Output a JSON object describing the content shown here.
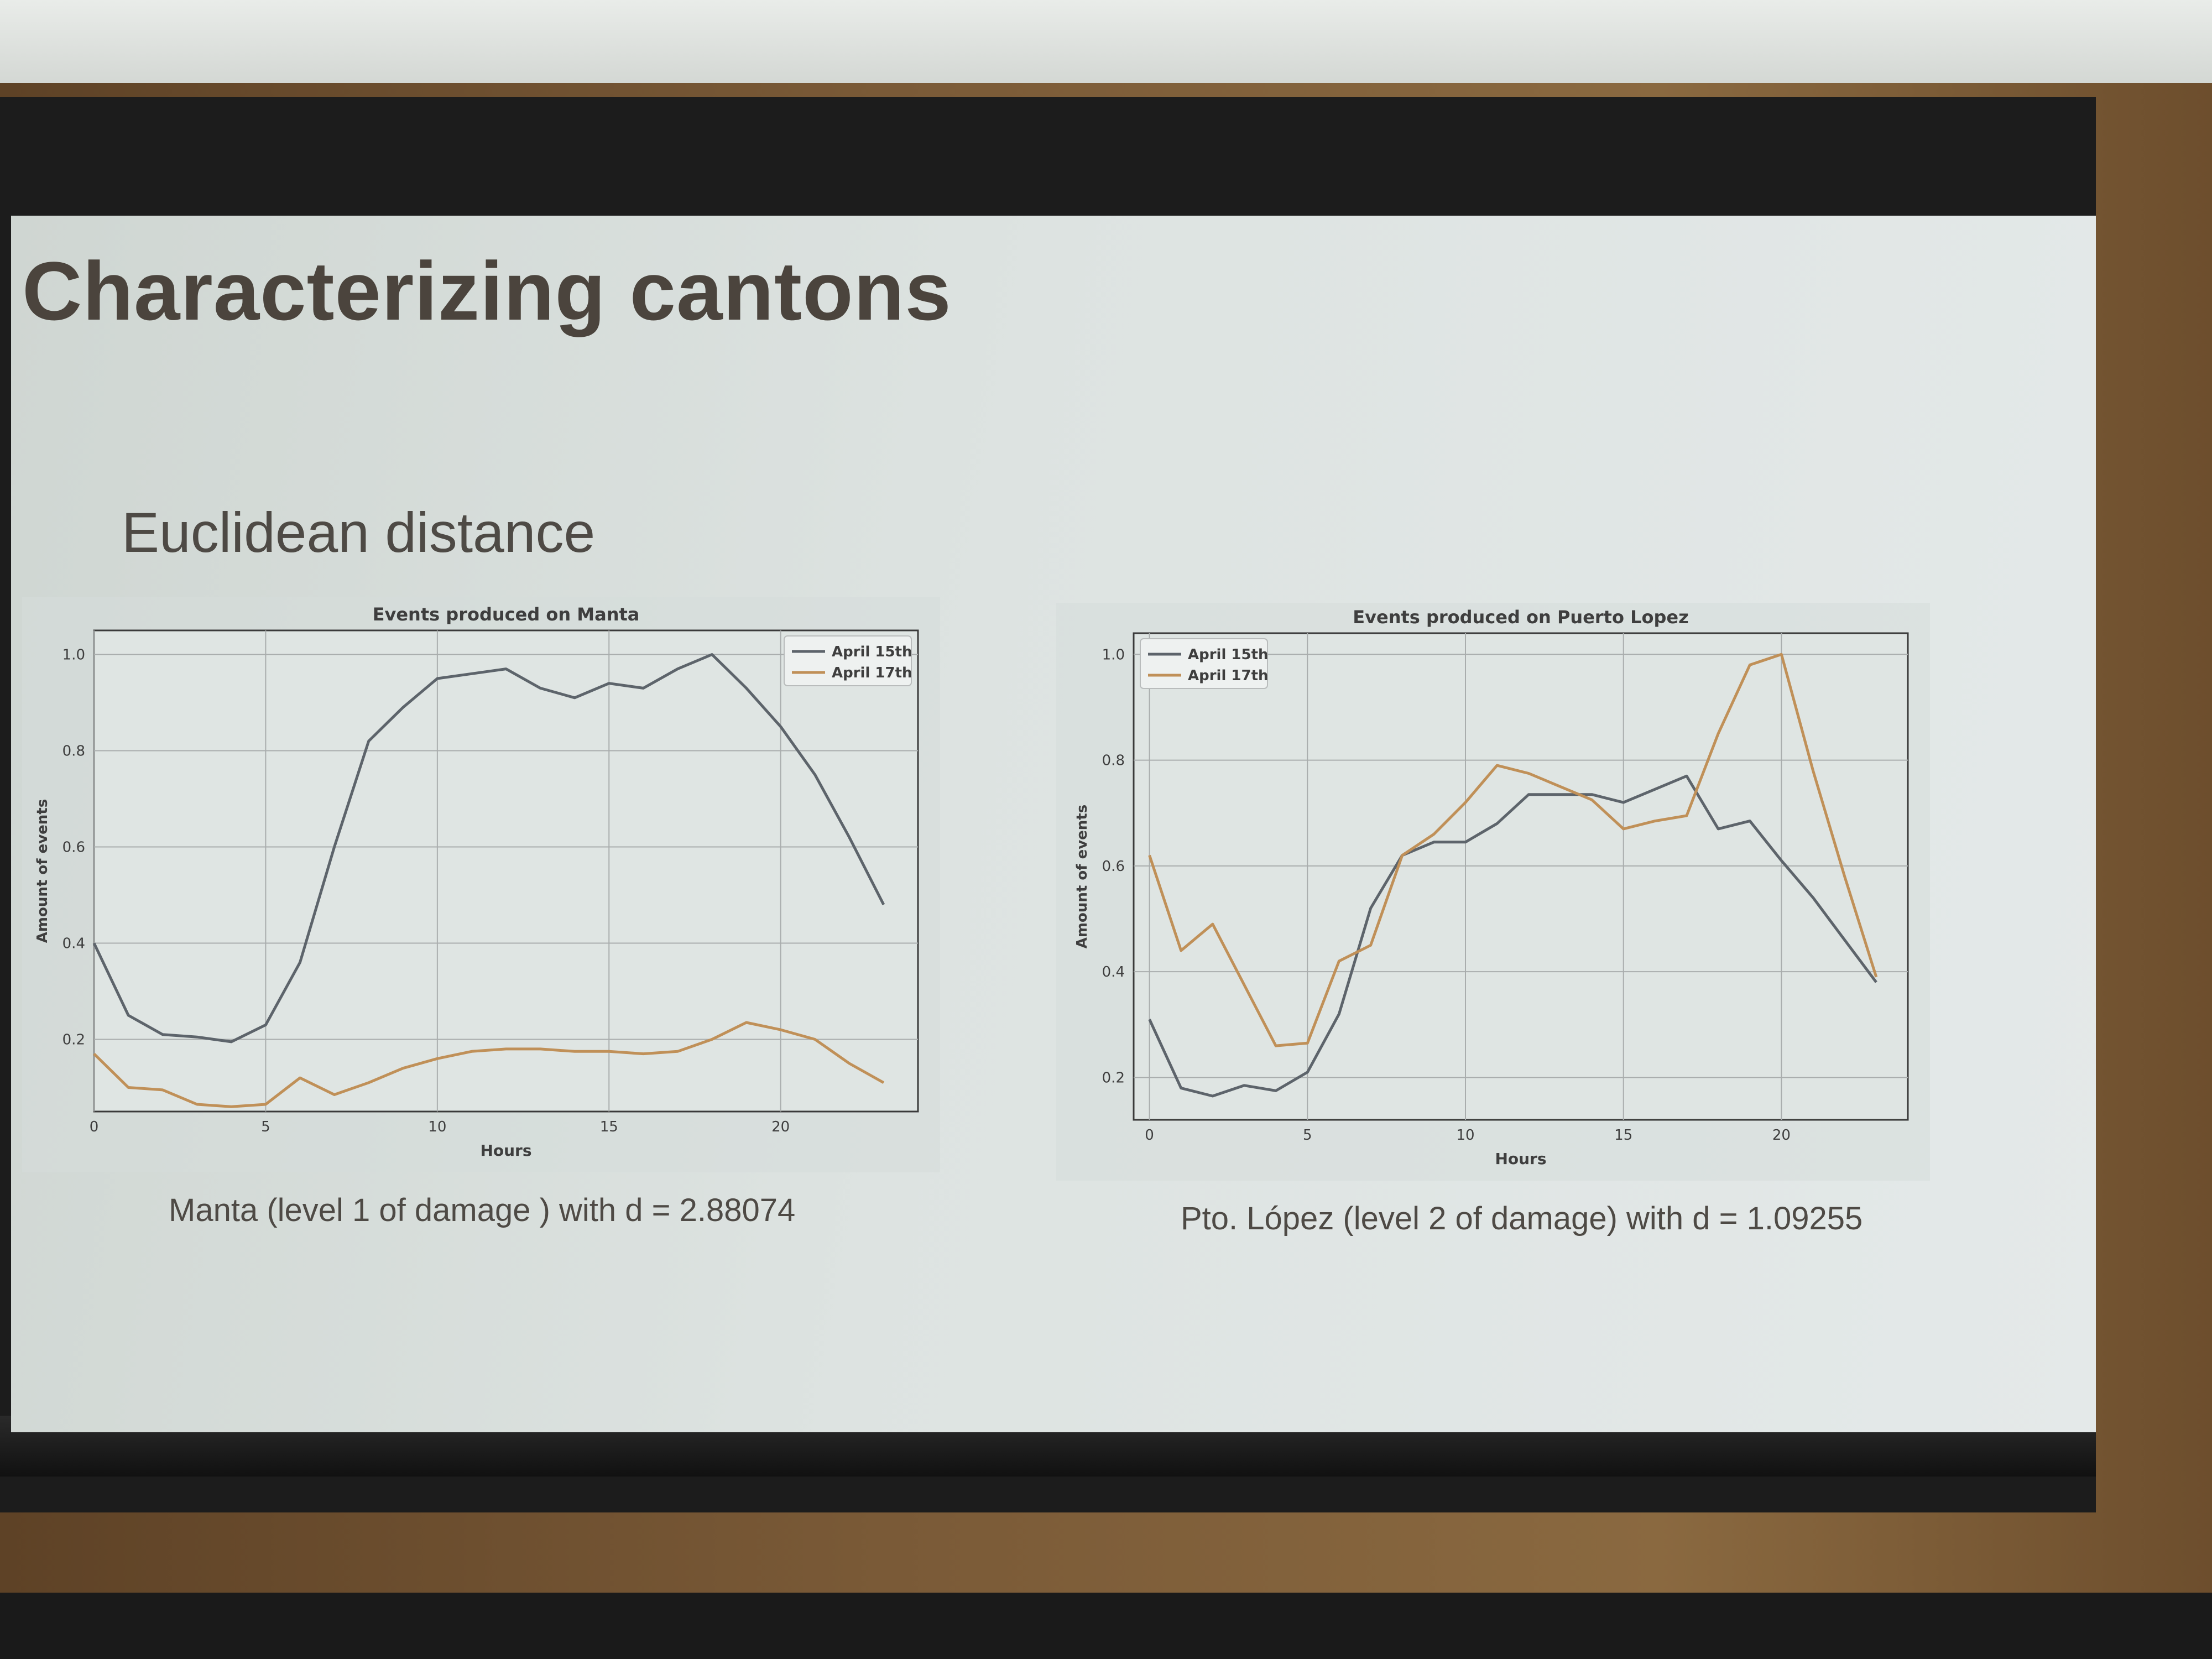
{
  "slide": {
    "title": "Characterizing cantons",
    "subtitle": "Euclidean distance",
    "captions": [
      "Manta (level 1 of damage ) with d = 2.88074",
      "Pto. López (level 2 of damage) with d = 1.09255"
    ]
  },
  "colors": {
    "april15": "#5d646b",
    "april17": "#c09058",
    "grid": "#a9adad",
    "frame": "#3a3a3a"
  },
  "chart_data": [
    {
      "type": "line",
      "title": "Events produced on Manta",
      "xlabel": "Hours",
      "ylabel": "Amount of events",
      "xlim": [
        0,
        24
      ],
      "ylim": [
        0.05,
        1.05
      ],
      "xticks": [
        0,
        5,
        10,
        15,
        20
      ],
      "yticks": [
        0.2,
        0.4,
        0.6,
        0.8,
        1.0
      ],
      "grid": true,
      "legend_position": "top-right",
      "x": [
        0,
        1,
        2,
        3,
        4,
        5,
        6,
        7,
        8,
        9,
        10,
        11,
        12,
        13,
        14,
        15,
        16,
        17,
        18,
        19,
        20,
        21,
        22,
        23
      ],
      "series": [
        {
          "name": "April 15th",
          "color_key": "april15",
          "values": [
            0.4,
            0.25,
            0.21,
            0.205,
            0.195,
            0.23,
            0.36,
            0.6,
            0.82,
            0.89,
            0.95,
            0.96,
            0.97,
            0.93,
            0.91,
            0.94,
            0.93,
            0.97,
            1.0,
            0.93,
            0.85,
            0.75,
            0.62,
            0.48
          ]
        },
        {
          "name": "April 17th",
          "color_key": "april17",
          "values": [
            0.17,
            0.1,
            0.095,
            0.065,
            0.06,
            0.065,
            0.12,
            0.085,
            0.11,
            0.14,
            0.16,
            0.175,
            0.18,
            0.18,
            0.175,
            0.175,
            0.17,
            0.175,
            0.2,
            0.235,
            0.22,
            0.2,
            0.15,
            0.11
          ]
        }
      ]
    },
    {
      "type": "line",
      "title": "Events produced on Puerto Lopez",
      "xlabel": "Hours",
      "ylabel": "Amount of events",
      "xlim": [
        -0.5,
        24
      ],
      "ylim": [
        0.12,
        1.04
      ],
      "xticks": [
        0,
        5,
        10,
        15,
        20
      ],
      "yticks": [
        0.2,
        0.4,
        0.6,
        0.8,
        1.0
      ],
      "grid": true,
      "legend_position": "top-left",
      "x": [
        0,
        1,
        2,
        3,
        4,
        5,
        6,
        7,
        8,
        9,
        10,
        11,
        12,
        13,
        14,
        15,
        16,
        17,
        18,
        19,
        20,
        21,
        22,
        23
      ],
      "series": [
        {
          "name": "April 15th",
          "color_key": "april15",
          "values": [
            0.31,
            0.18,
            0.165,
            0.185,
            0.175,
            0.21,
            0.32,
            0.52,
            0.62,
            0.645,
            0.645,
            0.68,
            0.735,
            0.735,
            0.735,
            0.72,
            0.745,
            0.77,
            0.67,
            0.685,
            0.61,
            0.54,
            0.46,
            0.38
          ]
        },
        {
          "name": "April 17th",
          "color_key": "april17",
          "values": [
            0.62,
            0.44,
            0.49,
            0.375,
            0.26,
            0.265,
            0.42,
            0.45,
            0.62,
            0.66,
            0.72,
            0.79,
            0.775,
            0.75,
            0.725,
            0.67,
            0.685,
            0.695,
            0.85,
            0.98,
            1.0,
            0.78,
            0.58,
            0.39
          ]
        }
      ]
    }
  ]
}
